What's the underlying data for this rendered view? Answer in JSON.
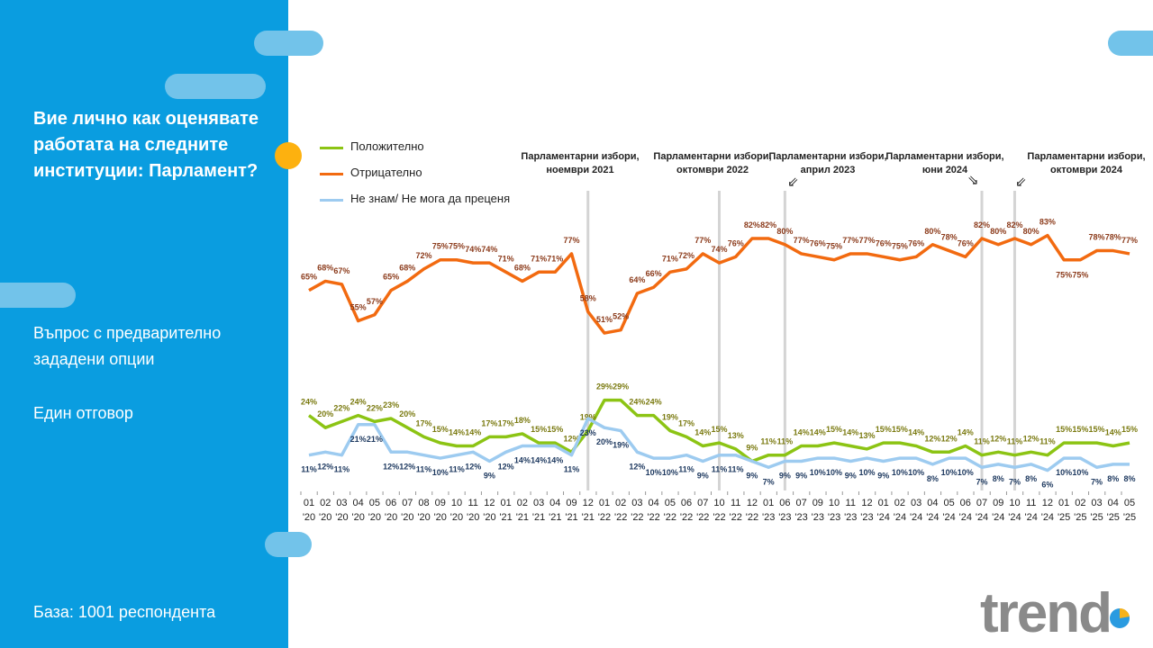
{
  "sidebar": {
    "question": "Вие лично как оценявате работата на следните институции: Парламент?",
    "note1": "Въпрос с предварително зададени опции",
    "note2": "Един отговор",
    "base": "База:  1001 респондента"
  },
  "logo": {
    "text": "trend"
  },
  "events": [
    {
      "label": "Парламентарни избори, ноември 2021",
      "line1": "Парламентарни избори,",
      "line2": "ноември 2021",
      "at": "12 '21",
      "arrow": ""
    },
    {
      "label": "Парламентарни избори, октомври 2022",
      "line1": "Парламентарни избори,",
      "line2": "октомври 2022",
      "at": "10 '22",
      "arrow": ""
    },
    {
      "label": "Парламентарни избори, април 2023",
      "line1": "Парламентарни избори,",
      "line2": "април 2023",
      "at": "06 '23",
      "arrow": "⇙"
    },
    {
      "label": "Парламентарни избори, юни 2024",
      "line1": "Парламентарни избори,",
      "line2": "юни 2024",
      "at": "07 '24",
      "arrow": "⇘"
    },
    {
      "label": "Парламентарни избори, октомври 2024",
      "line1": "Парламентарни избори,",
      "line2": "октомври 2024",
      "at": "10 '24",
      "arrow": "⇙"
    }
  ],
  "chart_data": {
    "type": "line",
    "title": "",
    "xlabel": "",
    "ylabel": "",
    "ylim": [
      0,
      82
    ],
    "grid": false,
    "legend_position": "top-left",
    "x": [
      "01 '20",
      "02 '20",
      "03 '20",
      "04 '20",
      "05 '20",
      "06 '20",
      "07 '20",
      "08 '20",
      "09 '20",
      "10 '20",
      "11 '20",
      "12 '20",
      "01 '21",
      "02 '21",
      "03 '21",
      "04 '21",
      "09 '21",
      "12 '21",
      "01 '22",
      "02 '22",
      "03 '22",
      "04 '22",
      "05 '22",
      "06 '22",
      "07 '22",
      "10 '22",
      "11 '22",
      "12 '22",
      "01 '23",
      "06 '23",
      "07 '23",
      "09 '23",
      "10 '23",
      "11 '23",
      "12 '23",
      "01 '24",
      "02 '24",
      "03 '24",
      "04 '24",
      "05 '24",
      "06 '24",
      "07 '24",
      "09 '24",
      "10 '24",
      "11 '24",
      "12 '24",
      "01 '25",
      "02 '25",
      "03 '25",
      "04 '25",
      "05 '25"
    ],
    "series": [
      {
        "name": "Положително",
        "color": "#8cc414",
        "label_color": "#7a7a10",
        "values": [
          24,
          20,
          22,
          24,
          22,
          23,
          20,
          17,
          15,
          14,
          14,
          17,
          17,
          18,
          15,
          15,
          12,
          19,
          29,
          29,
          24,
          24,
          19,
          17,
          14,
          15,
          13,
          9,
          11,
          11,
          14,
          14,
          15,
          14,
          13,
          15,
          15,
          14,
          12,
          12,
          14,
          11,
          12,
          11,
          12,
          11,
          15,
          15,
          15,
          14,
          15
        ]
      },
      {
        "name": "Отрицателно",
        "color": "#f26a10",
        "label_color": "#8b3a1a",
        "values": [
          65,
          68,
          67,
          55,
          57,
          65,
          68,
          72,
          75,
          75,
          74,
          74,
          71,
          68,
          71,
          71,
          77,
          58,
          51,
          52,
          64,
          66,
          71,
          72,
          77,
          74,
          76,
          82,
          82,
          80,
          77,
          76,
          75,
          77,
          77,
          76,
          75,
          76,
          80,
          78,
          76,
          82,
          80,
          82,
          80,
          83,
          75,
          75,
          78,
          78,
          77
        ]
      },
      {
        "name": "Не знам/ Не мога да преценя",
        "color": "#9dcbf0",
        "label_color": "#1f3a60",
        "values": [
          11,
          12,
          11,
          21,
          21,
          12,
          12,
          11,
          10,
          11,
          12,
          9,
          12,
          14,
          14,
          14,
          11,
          23,
          20,
          19,
          12,
          10,
          10,
          11,
          9,
          11,
          11,
          9,
          7,
          9,
          9,
          10,
          10,
          9,
          10,
          9,
          10,
          10,
          8,
          10,
          10,
          7,
          8,
          7,
          8,
          6,
          10,
          10,
          7,
          8,
          8
        ]
      }
    ],
    "value_suffix": "%"
  }
}
